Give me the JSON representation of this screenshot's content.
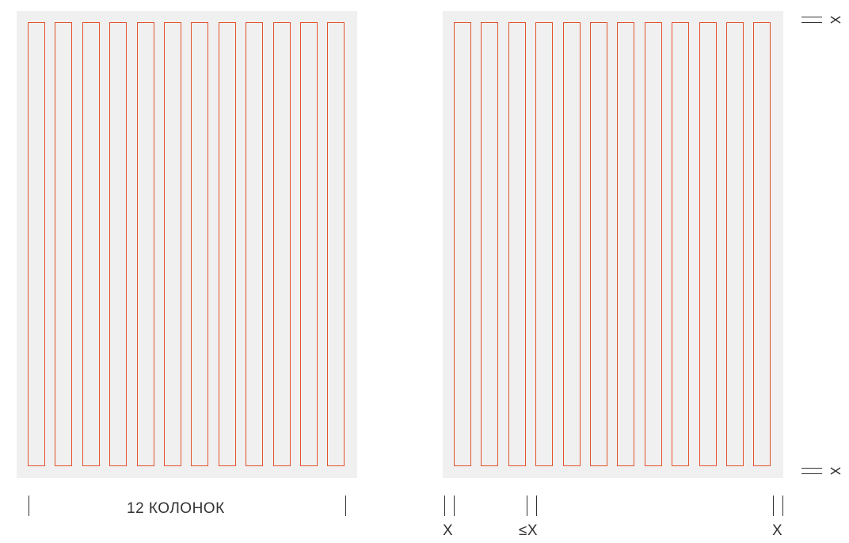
{
  "left_grid": {
    "column_count": 12,
    "caption": "12 КОЛОНОК"
  },
  "right_grid": {
    "column_count": 12
  },
  "dimension_labels": {
    "outer_margin_left": "X",
    "gutter": "≤X",
    "outer_margin_right": "X"
  },
  "colors": {
    "page": "#f0f0f0",
    "column_outline": "#e4522b",
    "marks": "#333333"
  }
}
